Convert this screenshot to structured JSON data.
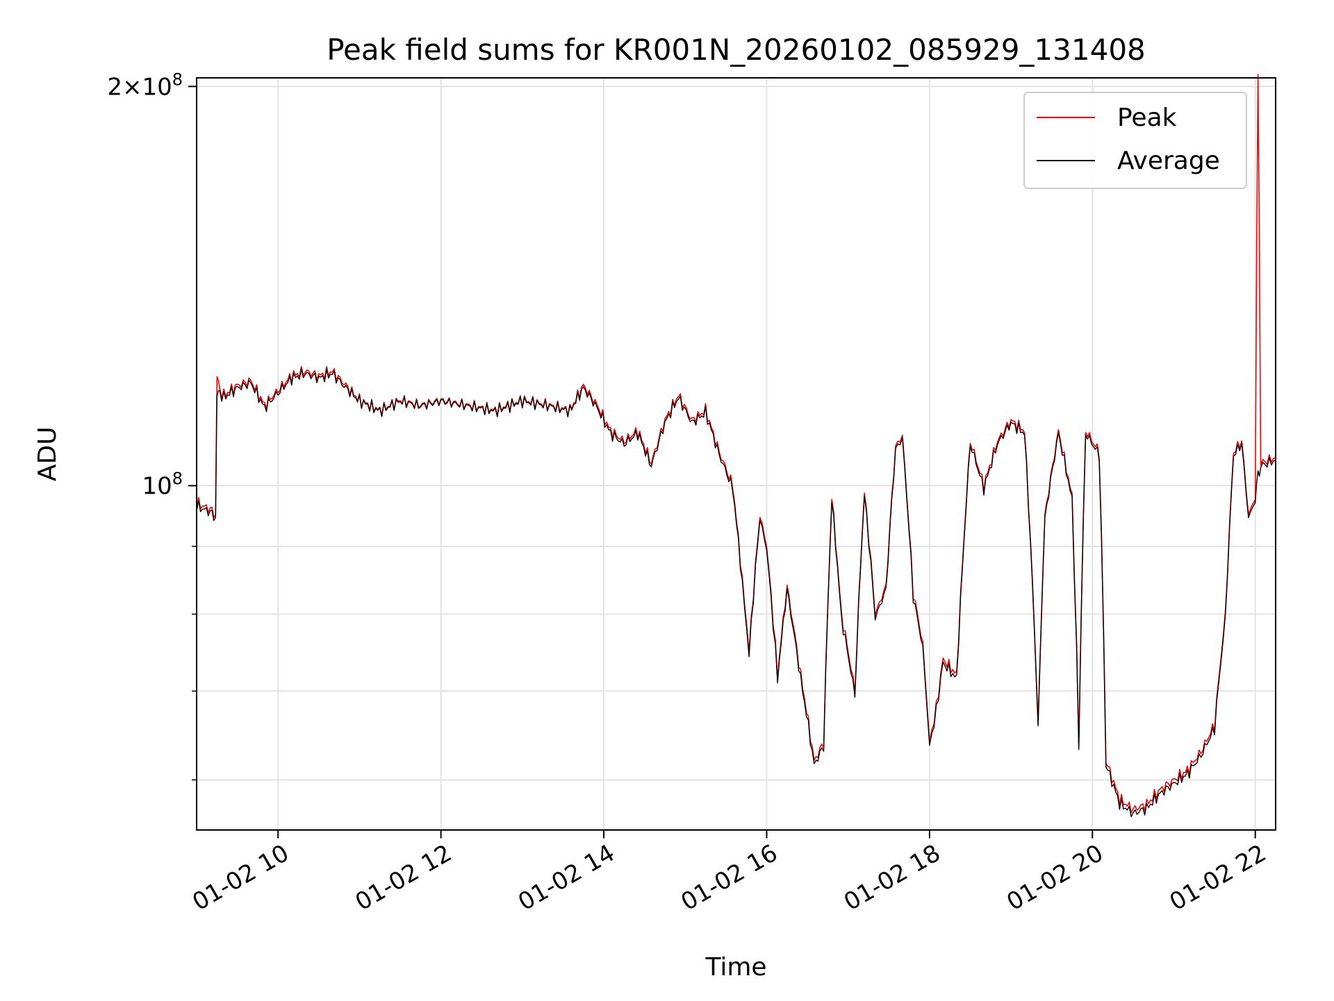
{
  "chart_data": {
    "type": "line",
    "title": "Peak field sums for KR001N_20260102_085929_131408",
    "xlabel": "Time",
    "ylabel": "ADU",
    "y_scale": "log",
    "grid": true,
    "legend_position": "upper right",
    "x_tick_labels": [
      "01-02 10",
      "01-02 12",
      "01-02 14",
      "01-02 16",
      "01-02 18",
      "01-02 20",
      "01-02 22"
    ],
    "y_tick_labels": [
      "10^8",
      "2×10^8"
    ],
    "xlim": [
      "01-02 09:00",
      "01-02 22:15"
    ],
    "ylim": [
      55000000,
      203000000
    ],
    "series": [
      {
        "name": "Peak",
        "color": "#ff0000",
        "points": [
          [
            "01-02 09:00",
            97000000
          ],
          [
            "01-02 09:10",
            96000000
          ],
          [
            "01-02 09:14",
            95000000
          ],
          [
            "01-02 09:15",
            121000000
          ],
          [
            "01-02 09:17",
            118000000
          ],
          [
            "01-02 09:20",
            117000000
          ],
          [
            "01-02 09:30",
            119000000
          ],
          [
            "01-02 09:40",
            120000000
          ],
          [
            "01-02 09:50",
            115000000
          ],
          [
            "01-02 10:00",
            118000000
          ],
          [
            "01-02 10:10",
            121000000
          ],
          [
            "01-02 10:20",
            122000000
          ],
          [
            "01-02 10:30",
            121000000
          ],
          [
            "01-02 10:40",
            122000000
          ],
          [
            "01-02 10:50",
            119000000
          ],
          [
            "01-02 11:00",
            116000000
          ],
          [
            "01-02 11:15",
            114000000
          ],
          [
            "01-02 11:30",
            116000000
          ],
          [
            "01-02 11:45",
            115000000
          ],
          [
            "01-02 12:00",
            116000000
          ],
          [
            "01-02 12:20",
            115000000
          ],
          [
            "01-02 12:40",
            114000000
          ],
          [
            "01-02 13:00",
            116000000
          ],
          [
            "01-02 13:20",
            115000000
          ],
          [
            "01-02 13:35",
            114000000
          ],
          [
            "01-02 13:45",
            119000000
          ],
          [
            "01-02 13:55",
            115000000
          ],
          [
            "01-02 14:05",
            110000000
          ],
          [
            "01-02 14:15",
            108000000
          ],
          [
            "01-02 14:25",
            110000000
          ],
          [
            "01-02 14:35",
            104000000
          ],
          [
            "01-02 14:45",
            112000000
          ],
          [
            "01-02 14:55",
            117000000
          ],
          [
            "01-02 15:05",
            112000000
          ],
          [
            "01-02 15:15",
            114000000
          ],
          [
            "01-02 15:25",
            106000000
          ],
          [
            "01-02 15:35",
            100000000
          ],
          [
            "01-02 15:42",
            85000000
          ],
          [
            "01-02 15:47",
            75000000
          ],
          [
            "01-02 15:55",
            95000000
          ],
          [
            "01-02 16:00",
            90000000
          ],
          [
            "01-02 16:08",
            72000000
          ],
          [
            "01-02 16:15",
            84000000
          ],
          [
            "01-02 16:25",
            72000000
          ],
          [
            "01-02 16:35",
            62000000
          ],
          [
            "01-02 16:42",
            64000000
          ],
          [
            "01-02 16:48",
            98000000
          ],
          [
            "01-02 16:55",
            80000000
          ],
          [
            "01-02 17:05",
            70000000
          ],
          [
            "01-02 17:12",
            99000000
          ],
          [
            "01-02 17:20",
            80000000
          ],
          [
            "01-02 17:28",
            84000000
          ],
          [
            "01-02 17:35",
            107000000
          ],
          [
            "01-02 17:40",
            109000000
          ],
          [
            "01-02 17:48",
            83000000
          ],
          [
            "01-02 17:55",
            76000000
          ],
          [
            "01-02 18:00",
            64000000
          ],
          [
            "01-02 18:05",
            68000000
          ],
          [
            "01-02 18:10",
            74000000
          ],
          [
            "01-02 18:20",
            72000000
          ],
          [
            "01-02 18:30",
            108000000
          ],
          [
            "01-02 18:40",
            100000000
          ],
          [
            "01-02 18:50",
            108000000
          ],
          [
            "01-02 19:00",
            112000000
          ],
          [
            "01-02 19:10",
            110000000
          ],
          [
            "01-02 19:20",
            66000000
          ],
          [
            "01-02 19:25",
            95000000
          ],
          [
            "01-02 19:35",
            110000000
          ],
          [
            "01-02 19:45",
            98000000
          ],
          [
            "01-02 19:50",
            64000000
          ],
          [
            "01-02 19:55",
            110000000
          ],
          [
            "01-02 20:05",
            106000000
          ],
          [
            "01-02 20:10",
            62000000
          ],
          [
            "01-02 20:20",
            58000000
          ],
          [
            "01-02 20:30",
            57000000
          ],
          [
            "01-02 20:40",
            57500000
          ],
          [
            "01-02 20:50",
            59000000
          ],
          [
            "01-02 21:00",
            60000000
          ],
          [
            "01-02 21:10",
            61000000
          ],
          [
            "01-02 21:20",
            63000000
          ],
          [
            "01-02 21:30",
            66000000
          ],
          [
            "01-02 21:38",
            80000000
          ],
          [
            "01-02 21:44",
            106000000
          ],
          [
            "01-02 21:50",
            108000000
          ],
          [
            "01-02 21:55",
            95000000
          ],
          [
            "01-02 22:00",
            98000000
          ],
          [
            "01-02 22:02",
            203000000
          ],
          [
            "01-02 22:04",
            104000000
          ],
          [
            "01-02 22:15",
            105000000
          ]
        ]
      },
      {
        "name": "Average",
        "color": "#000000",
        "points": [
          [
            "01-02 09:00",
            96500000
          ],
          [
            "01-02 09:10",
            95500000
          ],
          [
            "01-02 09:14",
            94500000
          ],
          [
            "01-02 09:15",
            117000000
          ],
          [
            "01-02 09:17",
            117500000
          ],
          [
            "01-02 09:20",
            116500000
          ],
          [
            "01-02 09:30",
            118500000
          ],
          [
            "01-02 09:40",
            119500000
          ],
          [
            "01-02 09:50",
            114500000
          ],
          [
            "01-02 10:00",
            117500000
          ],
          [
            "01-02 10:10",
            120500000
          ],
          [
            "01-02 10:20",
            121500000
          ],
          [
            "01-02 10:30",
            120500000
          ],
          [
            "01-02 10:40",
            121500000
          ],
          [
            "01-02 10:50",
            118500000
          ],
          [
            "01-02 11:00",
            115800000
          ],
          [
            "01-02 11:15",
            113800000
          ],
          [
            "01-02 11:30",
            115800000
          ],
          [
            "01-02 11:45",
            114800000
          ],
          [
            "01-02 12:00",
            115800000
          ],
          [
            "01-02 12:20",
            114800000
          ],
          [
            "01-02 12:40",
            113800000
          ],
          [
            "01-02 13:00",
            115800000
          ],
          [
            "01-02 13:20",
            114800000
          ],
          [
            "01-02 13:35",
            113800000
          ],
          [
            "01-02 13:45",
            118500000
          ],
          [
            "01-02 13:55",
            114500000
          ],
          [
            "01-02 14:05",
            109500000
          ],
          [
            "01-02 14:15",
            107500000
          ],
          [
            "01-02 14:25",
            109500000
          ],
          [
            "01-02 14:35",
            103500000
          ],
          [
            "01-02 14:45",
            111500000
          ],
          [
            "01-02 14:55",
            116500000
          ],
          [
            "01-02 15:05",
            111500000
          ],
          [
            "01-02 15:15",
            113500000
          ],
          [
            "01-02 15:25",
            105500000
          ],
          [
            "01-02 15:35",
            99500000
          ],
          [
            "01-02 15:42",
            84500000
          ],
          [
            "01-02 15:47",
            74500000
          ],
          [
            "01-02 15:55",
            94500000
          ],
          [
            "01-02 16:00",
            89500000
          ],
          [
            "01-02 16:08",
            71500000
          ],
          [
            "01-02 16:15",
            83500000
          ],
          [
            "01-02 16:25",
            71500000
          ],
          [
            "01-02 16:35",
            61600000
          ],
          [
            "01-02 16:42",
            63600000
          ],
          [
            "01-02 16:48",
            97500000
          ],
          [
            "01-02 16:55",
            79500000
          ],
          [
            "01-02 17:05",
            69500000
          ],
          [
            "01-02 17:12",
            98500000
          ],
          [
            "01-02 17:20",
            79500000
          ],
          [
            "01-02 17:28",
            83500000
          ],
          [
            "01-02 17:35",
            106500000
          ],
          [
            "01-02 17:40",
            108500000
          ],
          [
            "01-02 17:48",
            82500000
          ],
          [
            "01-02 17:55",
            75500000
          ],
          [
            "01-02 18:00",
            63600000
          ],
          [
            "01-02 18:05",
            67600000
          ],
          [
            "01-02 18:10",
            73500000
          ],
          [
            "01-02 18:20",
            71500000
          ],
          [
            "01-02 18:30",
            107500000
          ],
          [
            "01-02 18:40",
            99500000
          ],
          [
            "01-02 18:50",
            107500000
          ],
          [
            "01-02 19:00",
            111500000
          ],
          [
            "01-02 19:10",
            109500000
          ],
          [
            "01-02 19:20",
            65600000
          ],
          [
            "01-02 19:25",
            94500000
          ],
          [
            "01-02 19:35",
            109500000
          ],
          [
            "01-02 19:45",
            97500000
          ],
          [
            "01-02 19:50",
            63600000
          ],
          [
            "01-02 19:55",
            109500000
          ],
          [
            "01-02 20:05",
            105500000
          ],
          [
            "01-02 20:10",
            61600000
          ],
          [
            "01-02 20:20",
            57600000
          ],
          [
            "01-02 20:30",
            56600000
          ],
          [
            "01-02 20:40",
            57100000
          ],
          [
            "01-02 20:50",
            58600000
          ],
          [
            "01-02 21:00",
            59600000
          ],
          [
            "01-02 21:10",
            60600000
          ],
          [
            "01-02 21:20",
            62600000
          ],
          [
            "01-02 21:30",
            65600000
          ],
          [
            "01-02 21:38",
            79500000
          ],
          [
            "01-02 21:44",
            105500000
          ],
          [
            "01-02 21:50",
            107500000
          ],
          [
            "01-02 21:55",
            94500000
          ],
          [
            "01-02 22:00",
            97500000
          ],
          [
            "01-02 22:02",
            102000000
          ],
          [
            "01-02 22:04",
            103500000
          ],
          [
            "01-02 22:15",
            104500000
          ]
        ]
      }
    ]
  }
}
